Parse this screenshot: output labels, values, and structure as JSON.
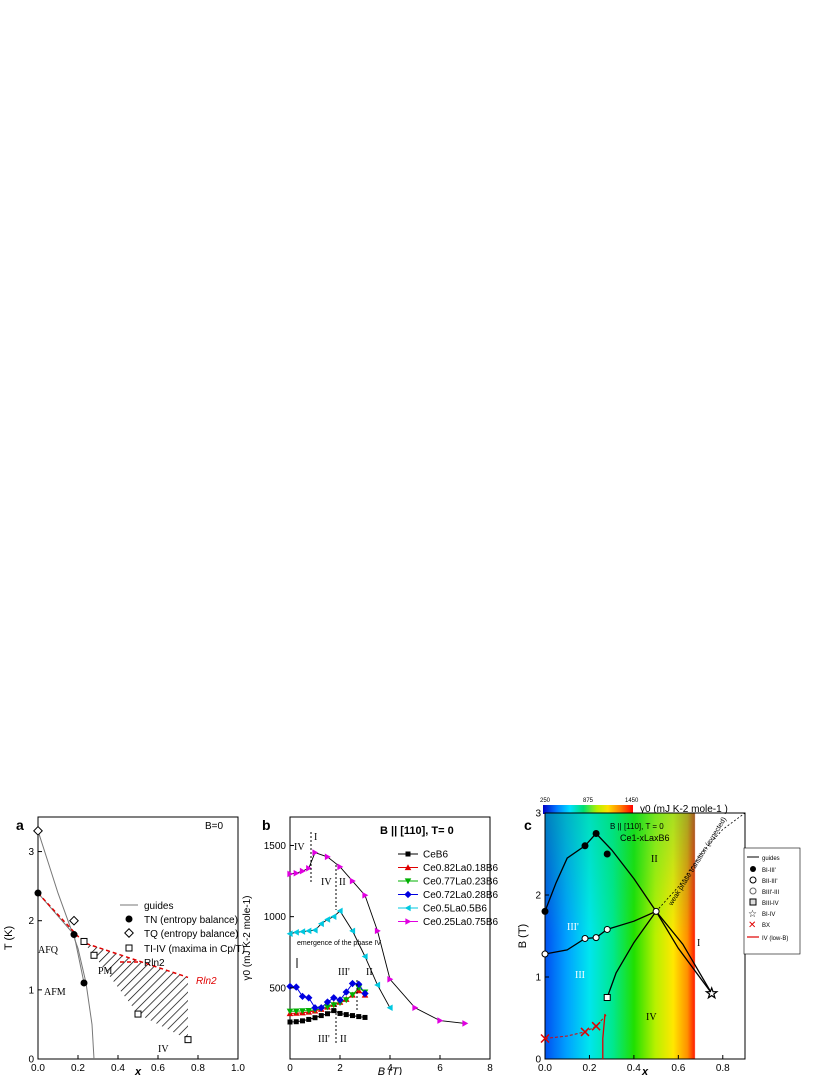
{
  "panels": {
    "a": {
      "letter": "a",
      "annotation": "B=0"
    },
    "b": {
      "letter": "b",
      "annotation": "B || [110], T= 0",
      "note": "emergence of the phase IV"
    },
    "c": {
      "letter": "c",
      "annotation": "B || [110], T = 0",
      "compound": "Ce1-xLaxB6",
      "colorbar_label": "γ0 (mJ K-2 mole-1 )",
      "colorbar_ticks": [
        "250",
        "875",
        "1450"
      ],
      "dashed_label": "weak phase transition (expected)"
    }
  },
  "chart_data": [
    {
      "id": "a",
      "type": "scatter",
      "xlabel": "x",
      "ylabel": "T (K)",
      "xlim": [
        0,
        1.0
      ],
      "ylim": [
        0,
        3.5
      ],
      "xticks": [
        "0.0",
        "0.2",
        "0.4",
        "0.6",
        "0.8",
        "1.0"
      ],
      "yticks": [
        "0",
        "1",
        "2",
        "3"
      ],
      "legend": [
        "guides",
        "TN (entropy balance)",
        "TQ (entropy balance)",
        "TI-IV (maxima in Cp/T)",
        "Rln2"
      ],
      "region_labels": [
        "AFQ",
        "AFM",
        "PM",
        "IV"
      ],
      "series": [
        {
          "name": "TN (entropy balance)",
          "marker": "filled-circle",
          "x": [
            0.0,
            0.18,
            0.23
          ],
          "y": [
            2.4,
            1.8,
            1.1
          ]
        },
        {
          "name": "TQ (entropy balance)",
          "marker": "open-diamond",
          "x": [
            0.0,
            0.18
          ],
          "y": [
            3.3,
            2.0
          ]
        },
        {
          "name": "TI-IV (maxima in Cp/T)",
          "marker": "open-square",
          "x": [
            0.23,
            0.28,
            0.5,
            0.75
          ],
          "y": [
            1.7,
            1.5,
            0.65,
            0.28
          ]
        },
        {
          "name": "Rln2",
          "style": "dashed-red",
          "x": [
            0.0,
            0.23,
            0.75
          ],
          "y": [
            2.4,
            1.68,
            1.18
          ]
        },
        {
          "name": "guides",
          "style": "thin-line",
          "x": [
            0.0,
            0.05,
            0.1,
            0.15,
            0.2,
            0.24,
            0.27,
            0.28
          ],
          "y": [
            3.3,
            2.85,
            2.4,
            2.0,
            1.6,
            1.1,
            0.5,
            0.0
          ]
        }
      ]
    },
    {
      "id": "b",
      "type": "line",
      "xlabel": "B (T)",
      "ylabel": "γ0 (mJ K-2 mole-1)",
      "xlim": [
        0,
        8
      ],
      "ylim": [
        0,
        1700
      ],
      "xticks": [
        "0",
        "2",
        "4",
        "6",
        "8"
      ],
      "yticks": [
        "500",
        "1000",
        "1500"
      ],
      "phase_labels": [
        "IV",
        "I",
        "IV",
        "II",
        "III'",
        "II",
        "III'",
        "II"
      ],
      "series": [
        {
          "name": "CeB6",
          "color": "#000000",
          "marker": "square",
          "x": [
            0,
            0.25,
            0.5,
            0.75,
            1.0,
            1.25,
            1.5,
            1.75,
            2.0,
            2.25,
            2.5,
            2.75,
            3.0
          ],
          "y": [
            260,
            262,
            268,
            278,
            290,
            305,
            318,
            340,
            320,
            312,
            305,
            298,
            292
          ]
        },
        {
          "name": "Ce0.82La0.18B6",
          "color": "#e00000",
          "marker": "triangle-up",
          "x": [
            0,
            0.25,
            0.5,
            0.75,
            1.0,
            1.25,
            1.5,
            1.75,
            2.0,
            2.25,
            2.5,
            2.75,
            3.0
          ],
          "y": [
            320,
            322,
            325,
            330,
            338,
            350,
            365,
            385,
            400,
            420,
            450,
            480,
            450
          ]
        },
        {
          "name": "Ce0.77La0.23B6",
          "color": "#00b000",
          "marker": "triangle-down",
          "x": [
            0,
            0.25,
            0.5,
            0.75,
            1.0,
            1.25,
            1.5,
            1.75,
            2.0,
            2.25,
            2.5,
            2.75,
            3.0
          ],
          "y": [
            335,
            336,
            338,
            340,
            345,
            352,
            365,
            380,
            395,
            415,
            450,
            500,
            470
          ]
        },
        {
          "name": "Ce0.72La0.28B6",
          "color": "#0000e0",
          "marker": "diamond",
          "x": [
            0,
            0.25,
            0.5,
            0.75,
            1.0,
            1.25,
            1.5,
            1.75,
            2.0,
            2.25,
            2.5,
            2.75,
            3.0
          ],
          "y": [
            510,
            505,
            440,
            430,
            360,
            360,
            400,
            430,
            415,
            470,
            530,
            525,
            460
          ]
        },
        {
          "name": "Ce0.5La0.5B6",
          "color": "#00c8e0",
          "marker": "triangle-left",
          "x": [
            0,
            0.25,
            0.5,
            0.75,
            1.0,
            1.25,
            1.5,
            1.75,
            2.0,
            2.5,
            3.0,
            3.5,
            4.0
          ],
          "y": [
            880,
            890,
            895,
            900,
            905,
            950,
            980,
            1000,
            1040,
            900,
            720,
            520,
            360
          ]
        },
        {
          "name": "Ce0.25La0.75B6",
          "color": "#e000e0",
          "marker": "triangle-right",
          "x": [
            0,
            0.25,
            0.5,
            0.75,
            1.0,
            1.5,
            2.0,
            2.5,
            3.0,
            3.5,
            4.0,
            5.0,
            6.0,
            7.0
          ],
          "y": [
            1300,
            1305,
            1320,
            1340,
            1450,
            1420,
            1350,
            1250,
            1150,
            900,
            560,
            360,
            270,
            250
          ]
        }
      ]
    },
    {
      "id": "c",
      "type": "heatmap",
      "xlabel": "x",
      "ylabel": "B (T)",
      "xlim": [
        0,
        0.9
      ],
      "ylim": [
        0,
        3
      ],
      "xticks": [
        "0.0",
        "0.2",
        "0.4",
        "0.6",
        "0.8"
      ],
      "yticks": [
        "0",
        "1",
        "2",
        "3"
      ],
      "zrange": [
        250,
        1450
      ],
      "phase_labels": [
        "II",
        "III'",
        "III",
        "I",
        "IV"
      ],
      "legend": [
        "guides",
        "BI-III'",
        "BII-III'",
        "BIII'-III",
        "BIII-IV",
        "BI-IV",
        "BX",
        "IV (low-B)"
      ],
      "series": [
        {
          "name": "BI-III'",
          "marker": "filled-circle",
          "x": [
            0.0,
            0.18,
            0.23,
            0.28
          ],
          "y": [
            1.8,
            2.6,
            2.75,
            2.5
          ]
        },
        {
          "name": "BIII'-III",
          "marker": "open-circle",
          "x": [
            0.0,
            0.18,
            0.23,
            0.28,
            0.5
          ],
          "y": [
            1.28,
            1.47,
            1.48,
            1.58,
            1.8
          ]
        },
        {
          "name": "BIII-IV",
          "marker": "open-square",
          "x": [
            0.28
          ],
          "y": [
            0.75
          ]
        },
        {
          "name": "BI-IV",
          "marker": "star",
          "x": [
            0.75
          ],
          "y": [
            0.8
          ]
        },
        {
          "name": "BX",
          "marker": "red-cross",
          "x": [
            0.0,
            0.18,
            0.23
          ],
          "y": [
            0.25,
            0.33,
            0.4
          ]
        }
      ]
    }
  ]
}
